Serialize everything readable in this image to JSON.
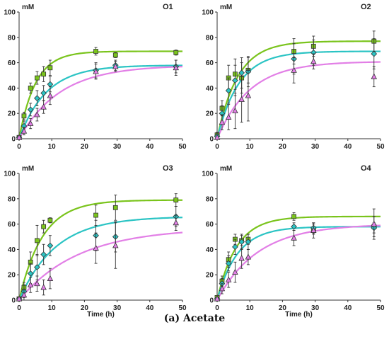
{
  "caption": "(a) Acetate",
  "colors": {
    "series_1": "#7ac41c",
    "series_2": "#2bc4c4",
    "series_3": "#e27fe6",
    "axis": "#333333",
    "error_bar": "#333333"
  },
  "chart_data": [
    {
      "type": "scatter",
      "title": "O1",
      "ylabel": "mM",
      "xlabel": "",
      "xlim": [
        0,
        50
      ],
      "ylim": [
        0,
        100
      ],
      "xticks": [
        0,
        10,
        20,
        30,
        40,
        50
      ],
      "yticks": [
        0,
        20,
        40,
        60,
        80,
        100
      ],
      "x": [
        0,
        1.5,
        3.5,
        5.5,
        7.5,
        9.5,
        23.5,
        29.5,
        48
      ],
      "series": [
        {
          "marker": "square",
          "values": [
            1,
            18,
            40,
            48,
            51,
            56,
            69,
            66,
            68
          ],
          "errors": [
            1,
            3,
            4,
            5,
            6,
            6,
            3,
            2,
            2
          ],
          "fit": {
            "asymptote": 69,
            "rate": 0.2
          }
        },
        {
          "marker": "diamond",
          "values": [
            1,
            10,
            23,
            32,
            36,
            43,
            54,
            58,
            57
          ],
          "errors": [
            1,
            4,
            5,
            6,
            6,
            6,
            6,
            4,
            5
          ],
          "fit": {
            "asymptote": 58,
            "rate": 0.12
          }
        },
        {
          "marker": "triangle",
          "values": [
            1,
            6,
            12,
            19,
            25,
            34,
            53,
            57,
            56
          ],
          "errors": [
            1,
            3,
            4,
            5,
            5,
            7,
            6,
            4,
            6
          ],
          "fit": {
            "asymptote": 58,
            "rate": 0.08
          }
        }
      ]
    },
    {
      "type": "scatter",
      "title": "O2",
      "ylabel": "mM",
      "xlabel": "",
      "xlim": [
        0,
        50
      ],
      "ylim": [
        0,
        100
      ],
      "xticks": [
        0,
        10,
        20,
        30,
        40,
        50
      ],
      "yticks": [
        0,
        20,
        40,
        60,
        80,
        100
      ],
      "x": [
        0,
        1.5,
        3.5,
        5.5,
        7.5,
        9.5,
        23.5,
        29.5,
        48
      ],
      "series": [
        {
          "marker": "square",
          "values": [
            3,
            24,
            48,
            51,
            48,
            54,
            69,
            73,
            77
          ],
          "errors": [
            2,
            6,
            10,
            12,
            12,
            10,
            10,
            8,
            8
          ],
          "fit": {
            "asymptote": 77,
            "rate": 0.16
          }
        },
        {
          "marker": "diamond",
          "values": [
            2,
            20,
            38,
            46,
            52,
            53,
            63,
            68,
            67
          ],
          "errors": [
            2,
            6,
            10,
            12,
            12,
            12,
            12,
            10,
            12
          ],
          "fit": {
            "asymptote": 69,
            "rate": 0.15
          }
        },
        {
          "marker": "triangle",
          "values": [
            1,
            13,
            17,
            22,
            31,
            34,
            54,
            61,
            49
          ],
          "errors": [
            1,
            6,
            10,
            14,
            18,
            20,
            10,
            6,
            8
          ],
          "fit": {
            "asymptote": 61,
            "rate": 0.1
          }
        }
      ]
    },
    {
      "type": "scatter",
      "title": "O3",
      "ylabel": "mM",
      "xlabel": "Time (h)",
      "xlim": [
        0,
        50
      ],
      "ylim": [
        0,
        100
      ],
      "xticks": [
        0,
        10,
        20,
        30,
        40,
        50
      ],
      "yticks": [
        0,
        20,
        40,
        60,
        80,
        100
      ],
      "x": [
        0,
        1.5,
        3.5,
        5.5,
        7.5,
        9.5,
        23.5,
        29.5,
        48
      ],
      "series": [
        {
          "marker": "square",
          "values": [
            1,
            10,
            30,
            47,
            58,
            63,
            67,
            73,
            79
          ],
          "errors": [
            1,
            4,
            8,
            12,
            5,
            2,
            8,
            10,
            5
          ],
          "fit": {
            "asymptote": 79,
            "rate": 0.14
          }
        },
        {
          "marker": "diamond",
          "values": [
            1,
            7,
            21,
            26,
            36,
            43,
            51,
            50,
            66
          ],
          "errors": [
            1,
            5,
            8,
            10,
            8,
            8,
            12,
            12,
            8
          ],
          "fit": {
            "asymptote": 66,
            "rate": 0.09
          }
        },
        {
          "marker": "triangle",
          "values": [
            1,
            4,
            12,
            13,
            10,
            17,
            41,
            43,
            61
          ],
          "errors": [
            1,
            4,
            6,
            6,
            6,
            8,
            12,
            18,
            6
          ],
          "fit": {
            "asymptote": 57,
            "rate": 0.055
          }
        }
      ]
    },
    {
      "type": "scatter",
      "title": "O4",
      "ylabel": "mM",
      "xlabel": "Time (h)",
      "xlim": [
        0,
        50
      ],
      "ylim": [
        0,
        100
      ],
      "xticks": [
        0,
        10,
        20,
        30,
        40,
        50
      ],
      "yticks": [
        0,
        20,
        40,
        60,
        80,
        100
      ],
      "x": [
        0,
        1.5,
        3.5,
        5.5,
        7.5,
        9.5,
        23.5,
        29.5,
        48
      ],
      "series": [
        {
          "marker": "square",
          "values": [
            2,
            15,
            32,
            48,
            47,
            48,
            66,
            56,
            58
          ],
          "errors": [
            1,
            4,
            6,
            4,
            4,
            4,
            3,
            4,
            8
          ],
          "fit": {
            "asymptote": 66,
            "rate": 0.17
          }
        },
        {
          "marker": "diamond",
          "values": [
            1,
            13,
            29,
            42,
            46,
            46,
            58,
            57,
            57
          ],
          "errors": [
            1,
            4,
            6,
            6,
            6,
            6,
            3,
            4,
            4
          ],
          "fit": {
            "asymptote": 58,
            "rate": 0.16
          }
        },
        {
          "marker": "triangle",
          "values": [
            1,
            9,
            16,
            22,
            33,
            34,
            49,
            55,
            60
          ],
          "errors": [
            1,
            4,
            6,
            8,
            8,
            6,
            6,
            6,
            12
          ],
          "fit": {
            "asymptote": 60,
            "rate": 0.08
          }
        }
      ]
    }
  ]
}
